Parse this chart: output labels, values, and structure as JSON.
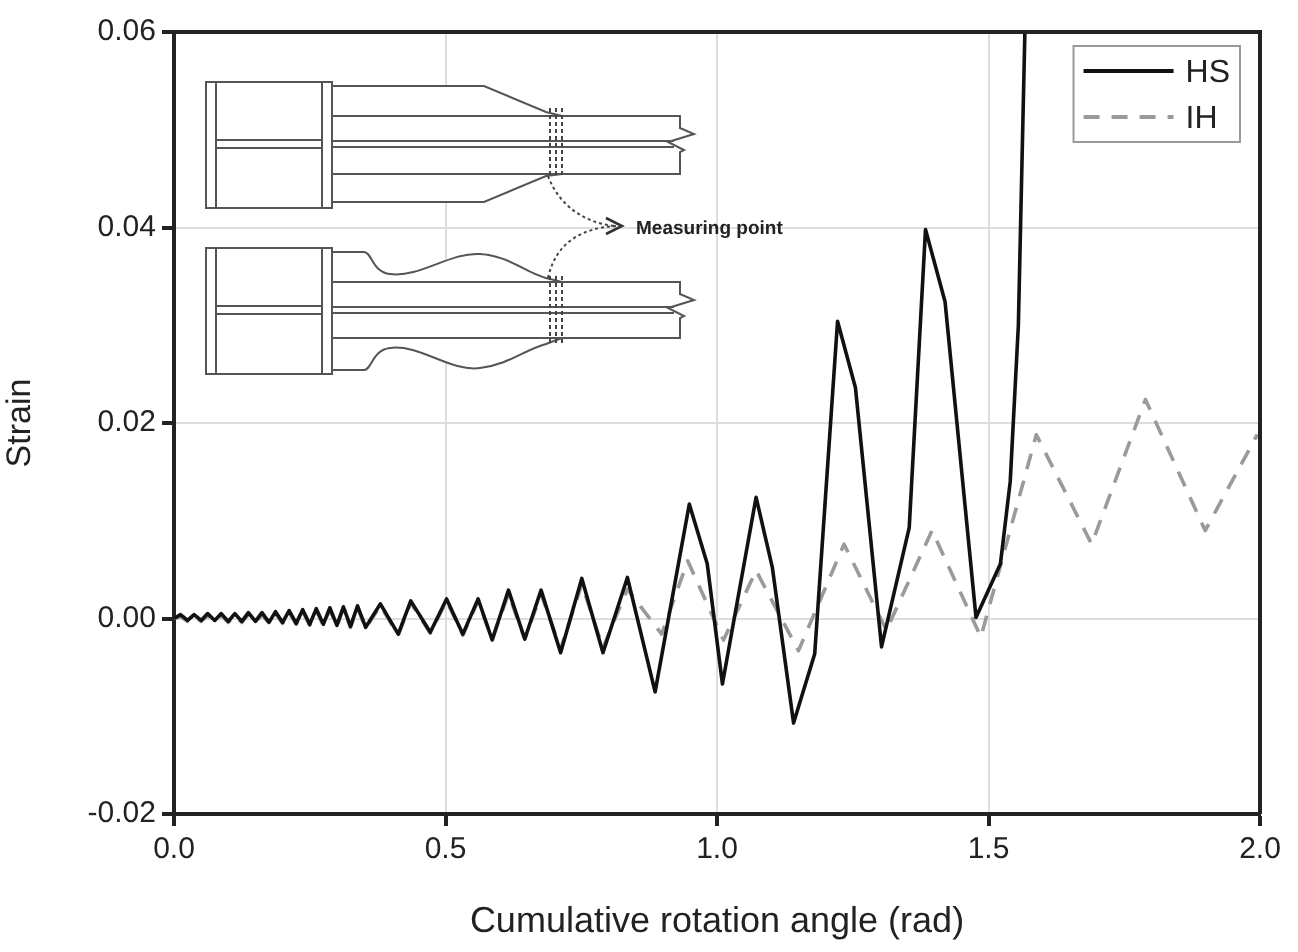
{
  "chart_data": {
    "type": "line",
    "xlabel": "Cumulative rotation angle (rad)",
    "ylabel": "Strain",
    "xlim": [
      0,
      2
    ],
    "ylim": [
      -0.02,
      0.06
    ],
    "xticks": [
      {
        "value": 0,
        "label": "0.0"
      },
      0.5,
      {
        "value": 1,
        "label": "1.0"
      },
      1.5,
      {
        "value": 2,
        "label": "2.0"
      }
    ],
    "yticks": [
      -0.02,
      {
        "value": 0,
        "label": "0.00"
      },
      0.02,
      0.04,
      0.06
    ],
    "grid": true,
    "legend": "top right",
    "annotations": [
      "Measuring point"
    ],
    "series": [
      {
        "name": "HS",
        "color": "#111111",
        "line_style": "solid",
        "x": [
          0,
          0.012,
          0.025,
          0.037,
          0.05,
          0.062,
          0.075,
          0.087,
          0.1,
          0.112,
          0.125,
          0.137,
          0.15,
          0.162,
          0.175,
          0.187,
          0.2,
          0.212,
          0.225,
          0.237,
          0.25,
          0.262,
          0.275,
          0.287,
          0.3,
          0.312,
          0.325,
          0.338,
          0.353,
          0.38,
          0.413,
          0.436,
          0.472,
          0.502,
          0.532,
          0.56,
          0.586,
          0.616,
          0.646,
          0.676,
          0.712,
          0.751,
          0.79,
          0.835,
          0.886,
          0.949,
          0.982,
          1.01,
          1.072,
          1.102,
          1.141,
          1.18,
          1.222,
          1.255,
          1.303,
          1.354,
          1.384,
          1.42,
          1.477,
          1.522,
          1.54,
          1.555,
          1.567
        ],
        "values": [
          0,
          0.0004,
          -0.0002,
          0.0004,
          -0.0002,
          0.0005,
          -0.0002,
          0.0005,
          -0.0003,
          0.0005,
          -0.0003,
          0.0006,
          -0.0003,
          0.0006,
          -0.0004,
          0.0007,
          -0.0004,
          0.0008,
          -0.0005,
          0.0009,
          -0.0006,
          0.001,
          -0.0006,
          0.0011,
          -0.0007,
          0.0012,
          -0.0008,
          0.0013,
          -0.0009,
          0.0015,
          -0.0016,
          0.0018,
          -0.0014,
          0.002,
          -0.0016,
          0.002,
          -0.0022,
          0.0029,
          -0.0021,
          0.0029,
          -0.0035,
          0.0041,
          -0.0035,
          0.0042,
          -0.0075,
          0.0117,
          0.0056,
          -0.0067,
          0.0124,
          0.0052,
          -0.0107,
          -0.0036,
          0.0304,
          0.0236,
          -0.0029,
          0.0093,
          0.0398,
          0.0324,
          0.0001,
          0.0056,
          0.014,
          0.03,
          0.06
        ]
      },
      {
        "name": "IH",
        "color": "#9a9a9a",
        "line_style": "dashed",
        "x": [
          0,
          0.012,
          0.025,
          0.037,
          0.05,
          0.062,
          0.075,
          0.087,
          0.1,
          0.112,
          0.125,
          0.137,
          0.15,
          0.162,
          0.175,
          0.187,
          0.2,
          0.212,
          0.225,
          0.237,
          0.25,
          0.262,
          0.275,
          0.287,
          0.3,
          0.312,
          0.325,
          0.338,
          0.353,
          0.38,
          0.413,
          0.436,
          0.472,
          0.502,
          0.532,
          0.56,
          0.586,
          0.616,
          0.646,
          0.676,
          0.712,
          0.751,
          0.79,
          0.835,
          0.898,
          0.946,
          1.012,
          1.072,
          1.15,
          1.234,
          1.312,
          1.396,
          1.486,
          1.588,
          1.69,
          1.789,
          1.899,
          1.995
        ],
        "values": [
          0,
          0.0002,
          -0.0003,
          0.0002,
          -0.0003,
          0.0003,
          -0.0003,
          0.0003,
          -0.0004,
          0.0003,
          -0.0004,
          0.0004,
          -0.0004,
          0.0004,
          -0.0005,
          0.0005,
          -0.0005,
          0.0006,
          -0.0006,
          0.0007,
          -0.0007,
          0.0008,
          -0.0007,
          0.0009,
          -0.0008,
          0.001,
          -0.0009,
          0.0011,
          -0.001,
          0.0013,
          -0.0017,
          0.0016,
          -0.0015,
          0.0018,
          -0.0017,
          0.0018,
          -0.0021,
          0.0025,
          -0.0021,
          0.0025,
          -0.0031,
          0.0035,
          -0.003,
          0.003,
          -0.0016,
          0.0059,
          -0.0022,
          0.0049,
          -0.0033,
          0.0076,
          -0.0012,
          0.009,
          -0.0019,
          0.0188,
          0.0076,
          0.0224,
          0.009,
          0.0188
        ]
      }
    ]
  }
}
